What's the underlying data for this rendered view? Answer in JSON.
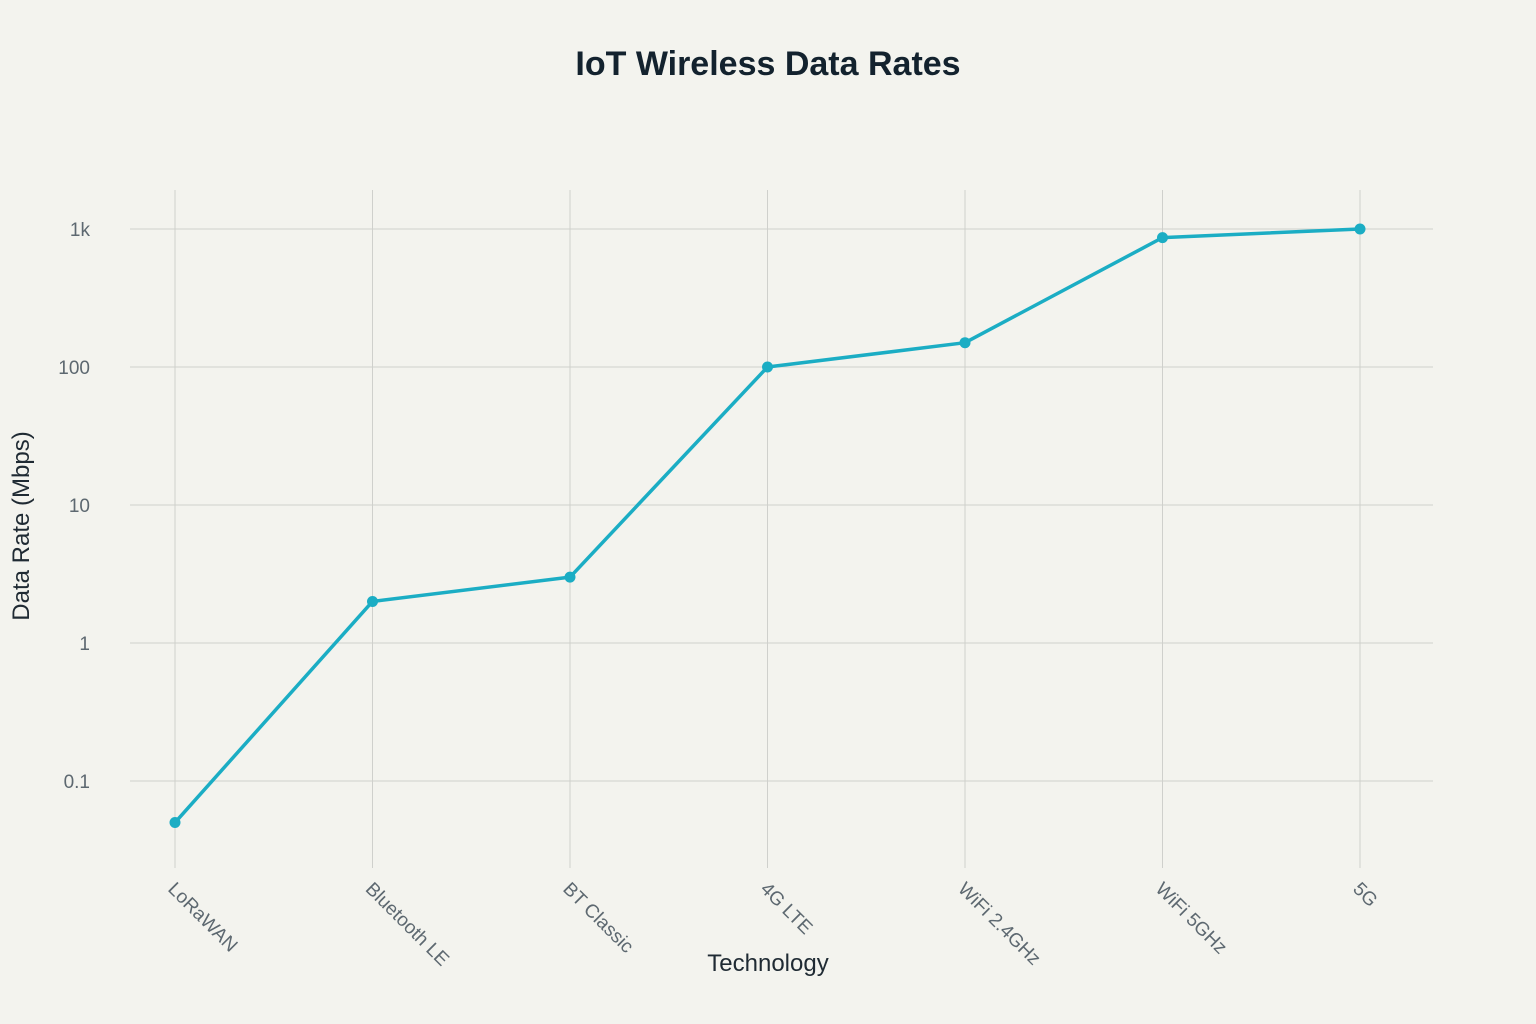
{
  "chart_data": {
    "type": "line",
    "title": "IoT Wireless Data Rates",
    "xlabel": "Technology",
    "ylabel": "Data Rate (Mbps)",
    "yscale": "log",
    "ylim": [
      0.05,
      1000
    ],
    "categories": [
      "LoRaWAN",
      "Bluetooth LE",
      "BT Classic",
      "4G LTE",
      "WiFi 2.4GHz",
      "WiFi 5GHz",
      "5G"
    ],
    "series": [
      {
        "values": [
          0.05,
          2,
          3,
          100,
          150,
          866,
          1000
        ],
        "color": "#1badc4"
      }
    ],
    "yticks": [
      {
        "value": 0.1,
        "label": "0.1"
      },
      {
        "value": 1,
        "label": "1"
      },
      {
        "value": 10,
        "label": "10"
      },
      {
        "value": 100,
        "label": "100"
      },
      {
        "value": 1000,
        "label": "1k"
      }
    ],
    "grid": true,
    "legend": "none"
  }
}
